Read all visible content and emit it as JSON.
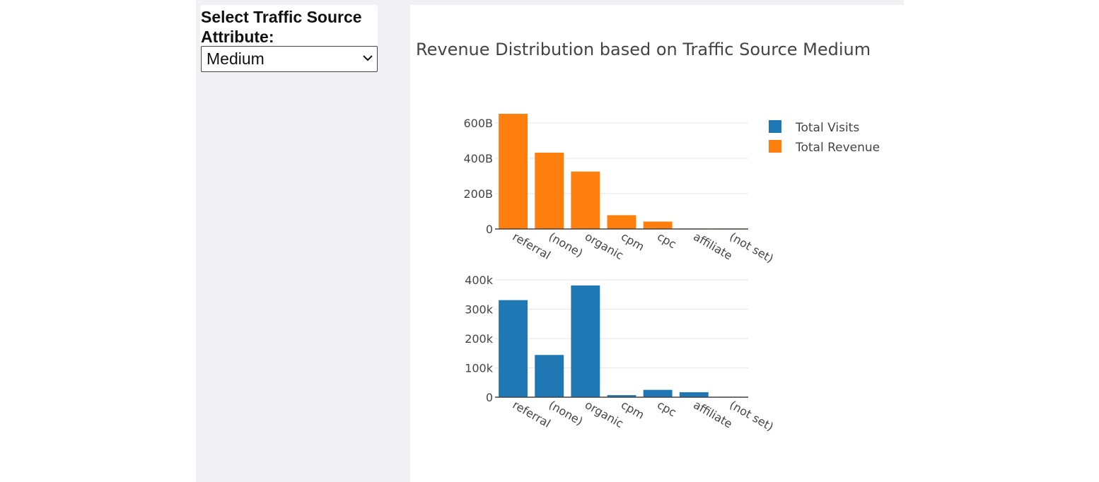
{
  "control": {
    "label": "Select Traffic Source Attribute:",
    "selected": "Medium",
    "chevron_icon": "chevron-down-icon"
  },
  "chart_data": {
    "type": "bar",
    "title": "Revenue Distribution based on Traffic Source Medium",
    "categories": [
      "referral",
      "(none)",
      "organic",
      "cpm",
      "cpc",
      "affiliate",
      "(not set)"
    ],
    "legend_placement": "top-right",
    "grid": true,
    "subplots": [
      {
        "series": [
          {
            "name": "Total Revenue",
            "color": "#ff7f0e",
            "values": [
              652000000000,
              432000000000,
              325000000000,
              78000000000,
              42000000000,
              1500000000,
              500000000
            ]
          }
        ],
        "ylim": [
          0,
          680000000000
        ],
        "yticks": [
          0,
          200000000000,
          400000000000,
          600000000000
        ],
        "ytick_labels": [
          "0",
          "200B",
          "400B",
          "600B"
        ]
      },
      {
        "series": [
          {
            "name": "Total Visits",
            "color": "#1f77b4",
            "values": [
              331000,
              144000,
              381000,
              7000,
              25000,
              17000,
              600
            ]
          }
        ],
        "ylim": [
          0,
          400000
        ],
        "yticks": [
          0,
          100000,
          200000,
          300000,
          400000
        ],
        "ytick_labels": [
          "0",
          "100k",
          "200k",
          "300k",
          "400k"
        ]
      }
    ],
    "legend": [
      {
        "name": "Total Visits",
        "color": "#1f77b4"
      },
      {
        "name": "Total Revenue",
        "color": "#ff7f0e"
      }
    ]
  }
}
